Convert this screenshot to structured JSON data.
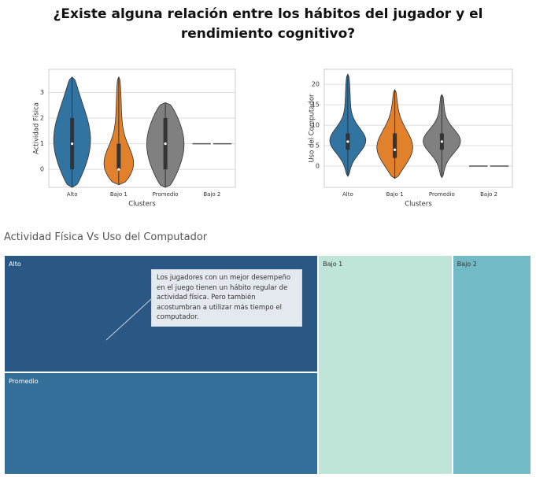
{
  "title": "¿Existe alguna relación entre los hábitos del jugador y el rendimiento cognitivo?",
  "chart_data": [
    {
      "type": "violin",
      "xlabel": "Clusters",
      "ylabel": "Actividad Física",
      "categories": [
        "Alto",
        "Bajo 1",
        "Promedio",
        "Bajo 2"
      ],
      "colors": [
        "#3274a1",
        "#e1812c",
        "#808080",
        "#555555"
      ],
      "min": [
        -0.7,
        -0.6,
        -0.7,
        1
      ],
      "q1": [
        0,
        0,
        0,
        1
      ],
      "median": [
        1,
        0,
        1,
        1
      ],
      "q3": [
        2,
        1,
        2,
        1
      ],
      "max": [
        3.6,
        3.6,
        2.6,
        1
      ],
      "ylim": [
        -0.7,
        3.9
      ],
      "yticks": [
        0,
        1,
        2,
        3
      ],
      "grid": true
    },
    {
      "type": "violin",
      "xlabel": "Clusters",
      "ylabel": "Uso del Computador",
      "categories": [
        "Alto",
        "Bajo 1",
        "Promedio",
        "Bajo 2"
      ],
      "colors": [
        "#3274a1",
        "#e1812c",
        "#808080",
        "#555555"
      ],
      "min": [
        -2.5,
        -3,
        -2.8,
        0
      ],
      "q1": [
        4,
        2,
        4,
        0
      ],
      "median": [
        6,
        4,
        6,
        0
      ],
      "q3": [
        8,
        8,
        8,
        0
      ],
      "max": [
        22.5,
        18.7,
        17.5,
        0
      ],
      "ylim": [
        -5.2,
        23.7
      ],
      "yticks": [
        0,
        5,
        10,
        15,
        20
      ],
      "grid": true
    },
    {
      "type": "treemap",
      "title": "Actividad Física Vs Uso del Computador",
      "categories": [
        "Alto",
        "Promedio",
        "Bajo 1",
        "Bajo 2"
      ],
      "values": [
        58900,
        51700,
        47260,
        27800
      ],
      "colors": [
        "#2a5783",
        "#336f99",
        "#bfe5d9",
        "#72bac5"
      ],
      "annotation": "Los jugadores con un mejor desempeño en el juego tienen un hábito regular de actividad física. Pero también acostumbran a utilizar más tiempo el computador."
    }
  ]
}
